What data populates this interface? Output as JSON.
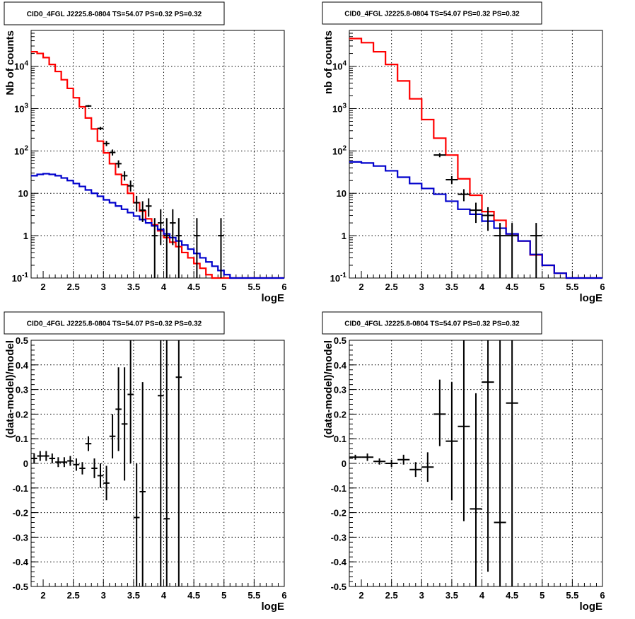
{
  "chart_data": [
    {
      "type": "line",
      "title": "CID0_4FGL J2225.8-0804 TS=54.07 PS=0.32 PS=0.32",
      "xlabel": "logE",
      "ylabel": "Nb of counts",
      "log_y": true,
      "xlim": [
        1.8,
        6.0
      ],
      "ylim": [
        0.1,
        70000
      ],
      "xticks": [
        "2",
        "2.5",
        "3",
        "3.5",
        "4",
        "4.5",
        "5",
        "5.5",
        "6"
      ],
      "yticks": [
        "10^-1",
        "1",
        "10",
        "10^2",
        "10^3",
        "10^4"
      ],
      "grid": true,
      "bin_edges": [
        1.8,
        1.9,
        2.0,
        2.1,
        2.2,
        2.3,
        2.4,
        2.5,
        2.6,
        2.7,
        2.8,
        2.9,
        3.0,
        3.1,
        3.2,
        3.3,
        3.4,
        3.5,
        3.6,
        3.7,
        3.8,
        3.9,
        4.0,
        4.1,
        4.2,
        4.3,
        4.4,
        4.5,
        4.6,
        4.7,
        4.8,
        4.9,
        5.0,
        5.1,
        5.2,
        5.3,
        5.4,
        5.5,
        5.6,
        5.7,
        5.8,
        5.9,
        6.0
      ],
      "series": [
        {
          "style": "step",
          "color": "#ff0000",
          "values": [
            22000,
            20000,
            16000,
            11000,
            7500,
            4800,
            3000,
            1800,
            1100,
            600,
            330,
            170,
            90,
            50,
            28,
            16,
            10,
            6,
            3.8,
            2.5,
            1.8,
            1.3,
            0.9,
            0.7,
            0.55,
            0.4,
            0.3,
            0.22,
            0.17,
            0.12,
            0.1,
            0.1,
            0.1,
            0.1,
            0.1,
            0.1,
            0.1,
            0.1,
            0.1,
            0.1,
            0.1,
            0.1
          ]
        },
        {
          "style": "step",
          "color": "#0000cc",
          "values": [
            26,
            28,
            29,
            28,
            26,
            23,
            20,
            17,
            14.5,
            12,
            10,
            8.5,
            7,
            6,
            5,
            4.2,
            3.5,
            2.9,
            2.4,
            2.0,
            1.7,
            1.4,
            1.1,
            0.9,
            0.75,
            0.6,
            0.48,
            0.38,
            0.3,
            0.24,
            0.19,
            0.15,
            0.12,
            0.1,
            0.1,
            0.1,
            0.1,
            0.1,
            0.1,
            0.1,
            0.1,
            0.1
          ]
        },
        {
          "style": "points",
          "color": "#000000",
          "points": [
            {
              "x": 2.75,
              "y": 1150,
              "lo": 1090,
              "hi": 1210
            },
            {
              "x": 2.95,
              "y": 340,
              "lo": 310,
              "hi": 370
            },
            {
              "x": 3.05,
              "y": 150,
              "lo": 130,
              "hi": 172
            },
            {
              "x": 3.15,
              "y": 92,
              "lo": 78,
              "hi": 108
            },
            {
              "x": 3.25,
              "y": 50,
              "lo": 40,
              "hi": 60
            },
            {
              "x": 3.35,
              "y": 26,
              "lo": 20,
              "hi": 33
            },
            {
              "x": 3.45,
              "y": 15,
              "lo": 11,
              "hi": 20
            },
            {
              "x": 3.55,
              "y": 6,
              "lo": 3.7,
              "hi": 8.7
            },
            {
              "x": 3.65,
              "y": 4,
              "lo": 2.1,
              "hi": 6.5
            },
            {
              "x": 3.75,
              "y": 5,
              "lo": 2.8,
              "hi": 7.6
            },
            {
              "x": 3.85,
              "y": 1,
              "lo": 0.1,
              "hi": 2.6
            },
            {
              "x": 3.95,
              "y": 2,
              "lo": 0.6,
              "hi": 4.2
            },
            {
              "x": 4.05,
              "y": 1,
              "lo": 0.1,
              "hi": 2.6
            },
            {
              "x": 4.15,
              "y": 2,
              "lo": 0.6,
              "hi": 4.2
            },
            {
              "x": 4.25,
              "y": 1,
              "lo": 0.1,
              "hi": 2.6
            },
            {
              "x": 4.55,
              "y": 1,
              "lo": 0.1,
              "hi": 2.6
            },
            {
              "x": 4.95,
              "y": 1,
              "lo": 0.1,
              "hi": 2.6
            }
          ],
          "xerr": 0.05
        }
      ]
    },
    {
      "type": "line",
      "title": "CID0_4FGL J2225.8-0804 TS=54.07 PS=0.32 PS=0.32",
      "xlabel": "logE",
      "ylabel": "nb of counts",
      "log_y": true,
      "xlim": [
        1.8,
        6.0
      ],
      "ylim": [
        0.1,
        70000
      ],
      "xticks": [
        "2",
        "2.5",
        "3",
        "3.5",
        "4",
        "4.5",
        "5",
        "5.5",
        "6"
      ],
      "yticks": [
        "10^-1",
        "1",
        "10",
        "10^2",
        "10^3",
        "10^4"
      ],
      "grid": true,
      "bin_edges": [
        1.8,
        2.0,
        2.2,
        2.4,
        2.6,
        2.8,
        3.0,
        3.2,
        3.4,
        3.6,
        3.8,
        4.0,
        4.2,
        4.4,
        4.6,
        4.8,
        5.0,
        5.2,
        5.4,
        5.6,
        5.8,
        6.0
      ],
      "series": [
        {
          "style": "step",
          "color": "#ff0000",
          "values": [
            45000,
            36000,
            22000,
            11000,
            4500,
            1700,
            550,
            200,
            80,
            22,
            9,
            3.7,
            2.3,
            1.1,
            0.75,
            0.35,
            0.2,
            0.13,
            0.1,
            0.1,
            0.1
          ]
        },
        {
          "style": "step",
          "color": "#0000cc",
          "values": [
            55,
            52,
            44,
            34,
            24,
            17,
            13,
            9.5,
            6.5,
            4.2,
            3.2,
            2.2,
            1.5,
            1.1,
            0.75,
            0.36,
            0.2,
            0.13,
            0.1,
            0.1,
            0.1
          ]
        },
        {
          "style": "points",
          "color": "#000000",
          "points": [
            {
              "x": 3.3,
              "y": 80,
              "lo": 71,
              "hi": 89
            },
            {
              "x": 3.5,
              "y": 21,
              "lo": 16.5,
              "hi": 25.5
            },
            {
              "x": 3.7,
              "y": 9.5,
              "lo": 6.5,
              "hi": 12.5
            },
            {
              "x": 3.9,
              "y": 4,
              "lo": 2,
              "hi": 6
            },
            {
              "x": 4.1,
              "y": 3,
              "lo": 1.3,
              "hi": 4.7
            },
            {
              "x": 4.3,
              "y": 1,
              "lo": 0.1,
              "hi": 2
            },
            {
              "x": 4.5,
              "y": 1,
              "lo": 0.1,
              "hi": 2
            },
            {
              "x": 4.9,
              "y": 1,
              "lo": 0.1,
              "hi": 2
            }
          ],
          "xerr": 0.1
        }
      ]
    },
    {
      "type": "scatter",
      "title": "CID0_4FGL J2225.8-0804 TS=54.07 PS=0.32 PS=0.32",
      "xlabel": "logE",
      "ylabel": "(data-model)/model",
      "log_y": false,
      "xlim": [
        1.8,
        6.0
      ],
      "ylim": [
        -0.5,
        0.5
      ],
      "xticks": [
        "2",
        "2.5",
        "3",
        "3.5",
        "4",
        "4.5",
        "5",
        "5.5",
        "6"
      ],
      "yticks": [
        "-0.5",
        "-0.4",
        "-0.3",
        "-0.2",
        "-0.1",
        "0",
        "0.1",
        "0.2",
        "0.3",
        "0.4",
        "0.5"
      ],
      "grid": true,
      "series": [
        {
          "style": "points",
          "color": "#000000",
          "xerr": 0.05,
          "points": [
            {
              "x": 1.85,
              "y": 0.02,
              "lo": 0.0,
              "hi": 0.04
            },
            {
              "x": 1.95,
              "y": 0.03,
              "lo": 0.01,
              "hi": 0.05
            },
            {
              "x": 2.05,
              "y": 0.03,
              "lo": 0.01,
              "hi": 0.05
            },
            {
              "x": 2.15,
              "y": 0.02,
              "lo": 0.0,
              "hi": 0.04
            },
            {
              "x": 2.25,
              "y": 0.005,
              "lo": -0.015,
              "hi": 0.025
            },
            {
              "x": 2.35,
              "y": 0.005,
              "lo": -0.015,
              "hi": 0.025
            },
            {
              "x": 2.45,
              "y": 0.01,
              "lo": -0.01,
              "hi": 0.03
            },
            {
              "x": 2.55,
              "y": -0.005,
              "lo": -0.03,
              "hi": 0.02
            },
            {
              "x": 2.65,
              "y": -0.02,
              "lo": -0.045,
              "hi": 0.005
            },
            {
              "x": 2.75,
              "y": 0.08,
              "lo": 0.05,
              "hi": 0.11
            },
            {
              "x": 2.85,
              "y": -0.02,
              "lo": -0.06,
              "hi": 0.02
            },
            {
              "x": 2.95,
              "y": -0.05,
              "lo": -0.1,
              "hi": 0.0
            },
            {
              "x": 3.05,
              "y": -0.08,
              "lo": -0.15,
              "hi": -0.01
            },
            {
              "x": 3.15,
              "y": 0.11,
              "lo": 0.02,
              "hi": 0.2
            },
            {
              "x": 3.25,
              "y": 0.22,
              "lo": 0.05,
              "hi": 0.39
            },
            {
              "x": 3.35,
              "y": 0.16,
              "lo": -0.07,
              "hi": 0.39
            },
            {
              "x": 3.45,
              "y": 0.28,
              "lo": 0.0,
              "hi": 0.5
            },
            {
              "x": 3.55,
              "y": -0.22,
              "lo": -0.5,
              "hi": 0.0
            },
            {
              "x": 3.65,
              "y": -0.115,
              "lo": -0.5,
              "hi": 0.33
            },
            {
              "x": 3.95,
              "y": 0.275,
              "lo": -0.5,
              "hi": 0.5
            },
            {
              "x": 4.05,
              "y": -0.225,
              "lo": -0.5,
              "hi": 0.5
            },
            {
              "x": 4.25,
              "y": 0.35,
              "lo": -0.5,
              "hi": 0.5
            }
          ]
        }
      ]
    },
    {
      "type": "scatter",
      "title": "CID0_4FGL J2225.8-0804 TS=54.07 PS=0.32 PS=0.32",
      "xlabel": "logE",
      "ylabel": "(data-model)/model",
      "log_y": false,
      "xlim": [
        1.8,
        6.0
      ],
      "ylim": [
        -0.5,
        0.5
      ],
      "xticks": [
        "2",
        "2.5",
        "3",
        "3.5",
        "4",
        "4.5",
        "5",
        "5.5",
        "6"
      ],
      "yticks": [
        "-0.5",
        "-0.4",
        "-0.3",
        "-0.2",
        "-0.1",
        "0",
        "0.1",
        "0.2",
        "0.3",
        "0.4",
        "0.5"
      ],
      "grid": true,
      "series": [
        {
          "style": "points",
          "color": "#000000",
          "xerr": 0.1,
          "points": [
            {
              "x": 1.9,
              "y": 0.025,
              "lo": 0.015,
              "hi": 0.035
            },
            {
              "x": 2.1,
              "y": 0.025,
              "lo": 0.01,
              "hi": 0.04
            },
            {
              "x": 2.3,
              "y": 0.008,
              "lo": -0.005,
              "hi": 0.02
            },
            {
              "x": 2.5,
              "y": 0.0,
              "lo": -0.015,
              "hi": 0.015
            },
            {
              "x": 2.7,
              "y": 0.015,
              "lo": -0.005,
              "hi": 0.035
            },
            {
              "x": 2.9,
              "y": -0.025,
              "lo": -0.055,
              "hi": 0.005
            },
            {
              "x": 3.1,
              "y": -0.015,
              "lo": -0.075,
              "hi": 0.045
            },
            {
              "x": 3.3,
              "y": 0.2,
              "lo": 0.07,
              "hi": 0.34
            },
            {
              "x": 3.5,
              "y": 0.09,
              "lo": -0.15,
              "hi": 0.33
            },
            {
              "x": 3.7,
              "y": 0.15,
              "lo": -0.235,
              "hi": 0.5
            },
            {
              "x": 3.9,
              "y": -0.185,
              "lo": -0.5,
              "hi": 0.285
            },
            {
              "x": 4.1,
              "y": 0.33,
              "lo": -0.44,
              "hi": 0.5
            },
            {
              "x": 4.3,
              "y": -0.24,
              "lo": -0.5,
              "hi": 0.5
            },
            {
              "x": 4.5,
              "y": 0.245,
              "lo": -0.5,
              "hi": 0.5
            }
          ]
        }
      ]
    }
  ]
}
